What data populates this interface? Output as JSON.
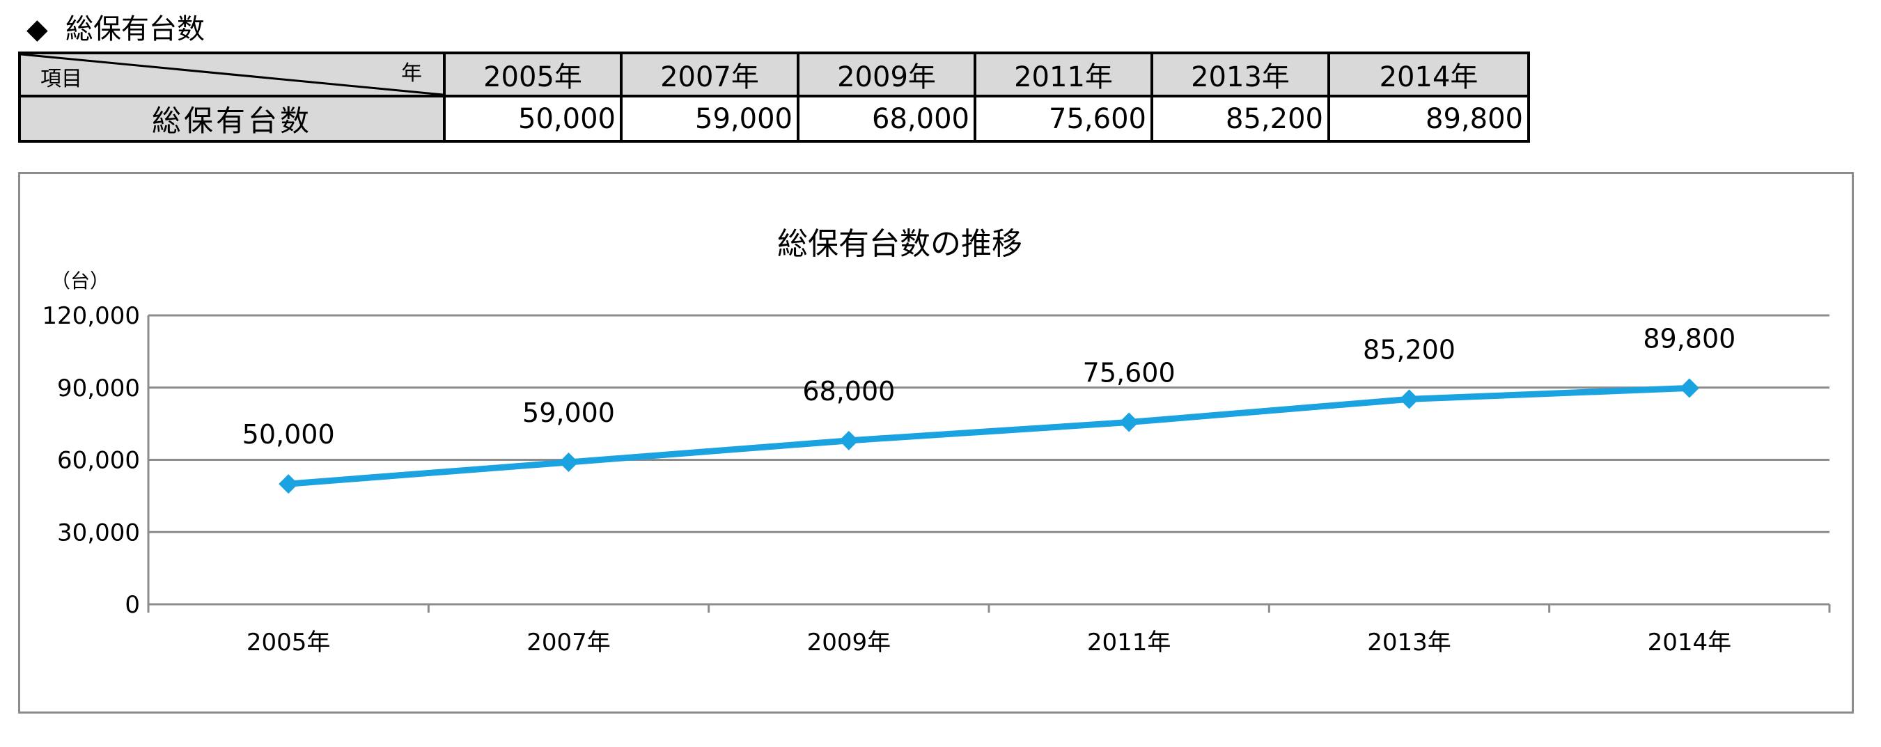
{
  "heading": {
    "marker": "◆",
    "text": "総保有台数"
  },
  "table": {
    "corner_item": "項目",
    "corner_year": "年",
    "years": [
      "2005年",
      "2007年",
      "2009年",
      "2011年",
      "2013年",
      "2014年"
    ],
    "row_label": "総保有台数",
    "values": [
      "50,000",
      "59,000",
      "68,000",
      "75,600",
      "85,200",
      "89,800"
    ]
  },
  "chart_data": {
    "type": "line",
    "title": "総保有台数の推移",
    "ylabel": "（台）",
    "categories": [
      "2005年",
      "2007年",
      "2009年",
      "2011年",
      "2013年",
      "2014年"
    ],
    "values": [
      50000,
      59000,
      68000,
      75600,
      85200,
      89800
    ],
    "data_labels": [
      "50,000",
      "59,000",
      "68,000",
      "75,600",
      "85,200",
      "89,800"
    ],
    "yticks": [
      0,
      30000,
      60000,
      90000,
      120000
    ],
    "ytick_labels": [
      "0",
      "30,000",
      "60,000",
      "90,000",
      "120,000"
    ],
    "ylim": [
      0,
      120000
    ],
    "grid": true,
    "legend": "none",
    "marker": "diamond",
    "line_color": "#1aa3e0"
  }
}
